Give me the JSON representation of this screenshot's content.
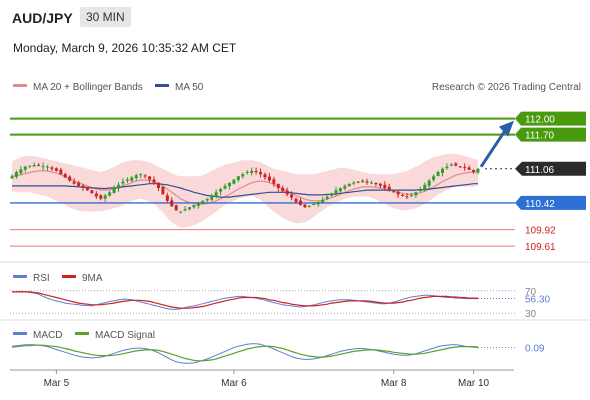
{
  "header": {
    "pair": "AUD/JPY",
    "timeframe": "30 MIN",
    "datetime": "Monday, March 9, 2026 10:35:32 AM CET"
  },
  "legend": {
    "ma20": "MA 20 + Bollinger Bands",
    "ma50": "MA 50",
    "credit": "Research © 2026 Trading Central",
    "rsi": "RSI",
    "rsi_ma": "9MA",
    "macd": "MACD",
    "macd_signal": "MACD Signal"
  },
  "colors": {
    "up": "#2f9e2f",
    "down": "#cc2222",
    "band": "#f8d5d5",
    "ma20": "#e38b8b",
    "ma50": "#334f8f",
    "resistance": "#4a9a10",
    "pivot": "#2e6fd6",
    "support": "#e37a7a",
    "arrow": "#2a5ea8"
  },
  "chart_data": {
    "type": "candlestick",
    "x_ticks": [
      "Mar 5",
      "Mar 6",
      "Mar 8",
      "Mar 10"
    ],
    "ylim": [
      109.35,
      112.35
    ],
    "levels": [
      {
        "value": 112.0,
        "label": "112.00",
        "kind": "resistance"
      },
      {
        "value": 111.7,
        "label": "111.70",
        "kind": "resistance"
      },
      {
        "value": 111.06,
        "label": "111.06",
        "kind": "current"
      },
      {
        "value": 110.42,
        "label": "110.42",
        "kind": "pivot"
      },
      {
        "value": 109.92,
        "label": "109.92",
        "kind": "support"
      },
      {
        "value": 109.61,
        "label": "109.61",
        "kind": "support"
      }
    ],
    "closes": [
      110.92,
      111.0,
      111.05,
      111.1,
      111.12,
      111.13,
      111.12,
      111.11,
      111.1,
      111.06,
      111.02,
      110.96,
      110.9,
      110.84,
      110.78,
      110.74,
      110.7,
      110.66,
      110.6,
      110.54,
      110.5,
      110.56,
      110.62,
      110.7,
      110.76,
      110.82,
      110.86,
      110.9,
      110.94,
      110.96,
      110.92,
      110.86,
      110.8,
      110.7,
      110.58,
      110.46,
      110.36,
      110.28,
      110.26,
      110.3,
      110.34,
      110.38,
      110.42,
      110.46,
      110.5,
      110.56,
      110.62,
      110.68,
      110.74,
      110.8,
      110.86,
      110.92,
      110.96,
      111.0,
      111.02,
      111.0,
      110.96,
      110.9,
      110.84,
      110.78,
      110.7,
      110.64,
      110.58,
      110.52,
      110.44,
      110.38,
      110.34,
      110.36,
      110.4,
      110.44,
      110.48,
      110.54,
      110.6,
      110.66,
      110.7,
      110.74,
      110.78,
      110.8,
      110.82,
      110.84,
      110.82,
      110.8,
      110.78,
      110.74,
      110.7,
      110.66,
      110.62,
      110.58,
      110.56,
      110.54,
      110.56,
      110.62,
      110.68,
      110.76,
      110.84,
      110.92,
      111.0,
      111.06,
      111.1,
      111.14,
      111.12,
      111.1,
      111.08,
      111.04,
      111.0,
      111.06
    ],
    "bands": {
      "upper": [
        111.2,
        111.24,
        111.28,
        111.3,
        111.3,
        111.3,
        111.28,
        111.26,
        111.24,
        111.22,
        111.2,
        111.18,
        111.16,
        111.14,
        111.12,
        111.1,
        111.08,
        111.06,
        111.04,
        111.02,
        111.0,
        111.02,
        111.06,
        111.1,
        111.14,
        111.18,
        111.2,
        111.22,
        111.22,
        111.22,
        111.2,
        111.18,
        111.14,
        111.1,
        111.06,
        111.02,
        110.98,
        110.94,
        110.92,
        110.92,
        110.92,
        110.92,
        110.92,
        110.94,
        110.98,
        111.02,
        111.06,
        111.1,
        111.14,
        111.16,
        111.18,
        111.2,
        111.22,
        111.22,
        111.22,
        111.2,
        111.18,
        111.14,
        111.1,
        111.06,
        111.04,
        111.02,
        111.0,
        110.98,
        110.96,
        110.96,
        110.96,
        110.96,
        110.96,
        110.98,
        111.0,
        111.02,
        111.04,
        111.06,
        111.08,
        111.08,
        111.06,
        111.04,
        111.02,
        111.0,
        110.98,
        110.96,
        110.96,
        110.96,
        110.96,
        110.96,
        110.96,
        110.98,
        111.0,
        111.02,
        111.06,
        111.1,
        111.14,
        111.2,
        111.24,
        111.28,
        111.3,
        111.32,
        111.34,
        111.34,
        111.34,
        111.32,
        111.3,
        111.28,
        111.24,
        111.24
      ],
      "lower": [
        110.64,
        110.62,
        110.62,
        110.62,
        110.62,
        110.6,
        110.58,
        110.56,
        110.54,
        110.5,
        110.46,
        110.42,
        110.38,
        110.34,
        110.3,
        110.28,
        110.26,
        110.26,
        110.26,
        110.26,
        110.26,
        110.28,
        110.3,
        110.32,
        110.34,
        110.38,
        110.42,
        110.46,
        110.48,
        110.5,
        110.48,
        110.44,
        110.4,
        110.32,
        110.24,
        110.14,
        110.06,
        110.0,
        109.96,
        109.96,
        109.98,
        110.0,
        110.04,
        110.08,
        110.14,
        110.2,
        110.26,
        110.32,
        110.38,
        110.42,
        110.46,
        110.5,
        110.52,
        110.54,
        110.56,
        110.52,
        110.48,
        110.4,
        110.32,
        110.26,
        110.2,
        110.14,
        110.1,
        110.06,
        110.04,
        110.04,
        110.06,
        110.1,
        110.16,
        110.22,
        110.28,
        110.34,
        110.38,
        110.42,
        110.46,
        110.5,
        110.52,
        110.54,
        110.54,
        110.54,
        110.54,
        110.52,
        110.48,
        110.44,
        110.4,
        110.36,
        110.32,
        110.3,
        110.28,
        110.28,
        110.3,
        110.32,
        110.36,
        110.4,
        110.46,
        110.52,
        110.58,
        110.62,
        110.66,
        110.7,
        110.72,
        110.72,
        110.72,
        110.72,
        110.72,
        110.74
      ]
    },
    "ma20": [
      110.92,
      110.93,
      110.95,
      110.97,
      110.99,
      111.01,
      111.02,
      111.02,
      111.02,
      111.0,
      110.98,
      110.95,
      110.91,
      110.87,
      110.83,
      110.8,
      110.77,
      110.74,
      110.71,
      110.68,
      110.66,
      110.66,
      110.67,
      110.69,
      110.71,
      110.74,
      110.77,
      110.8,
      110.83,
      110.85,
      110.85,
      110.84,
      110.82,
      110.78,
      110.74,
      110.68,
      110.62,
      110.56,
      110.5,
      110.46,
      110.43,
      110.41,
      110.4,
      110.4,
      110.41,
      110.43,
      110.46,
      110.5,
      110.54,
      110.58,
      110.63,
      110.68,
      110.72,
      110.76,
      110.8,
      110.82,
      110.83,
      110.82,
      110.8,
      110.77,
      110.73,
      110.68,
      110.64,
      110.6,
      110.56,
      110.52,
      110.49,
      110.47,
      110.46,
      110.46,
      110.47,
      110.49,
      110.52,
      110.55,
      110.58,
      110.62,
      110.65,
      110.68,
      110.7,
      110.72,
      110.72,
      110.72,
      110.71,
      110.7,
      110.68,
      110.66,
      110.64,
      110.62,
      110.6,
      110.58,
      110.58,
      110.59,
      110.61,
      110.64,
      110.68,
      110.72,
      110.77,
      110.82,
      110.86,
      110.9,
      110.94,
      110.96,
      110.98,
      110.99,
      111.0,
      111.0
    ],
    "ma50": [
      110.74,
      110.74,
      110.74,
      110.74,
      110.74,
      110.74,
      110.74,
      110.74,
      110.74,
      110.74,
      110.74,
      110.74,
      110.74,
      110.73,
      110.73,
      110.72,
      110.72,
      110.71,
      110.7,
      110.7,
      110.69,
      110.69,
      110.7,
      110.7,
      110.71,
      110.72,
      110.73,
      110.74,
      110.75,
      110.76,
      110.77,
      110.78,
      110.78,
      110.78,
      110.77,
      110.76,
      110.74,
      110.72,
      110.7,
      110.67,
      110.65,
      110.62,
      110.6,
      110.58,
      110.56,
      110.55,
      110.54,
      110.53,
      110.53,
      110.53,
      110.54,
      110.55,
      110.56,
      110.57,
      110.58,
      110.59,
      110.6,
      110.61,
      110.62,
      110.62,
      110.62,
      110.62,
      110.62,
      110.61,
      110.6,
      110.59,
      110.58,
      110.57,
      110.57,
      110.57,
      110.57,
      110.58,
      110.58,
      110.59,
      110.6,
      110.61,
      110.62,
      110.63,
      110.64,
      110.65,
      110.66,
      110.66,
      110.66,
      110.66,
      110.66,
      110.66,
      110.66,
      110.66,
      110.66,
      110.66,
      110.66,
      110.66,
      110.67,
      110.67,
      110.68,
      110.69,
      110.7,
      110.71,
      110.72,
      110.73,
      110.74,
      110.75,
      110.76,
      110.77,
      110.78,
      110.78
    ]
  },
  "rsi": {
    "levels": [
      70,
      30
    ],
    "level_labels": [
      "70",
      "30"
    ],
    "current": 56.3,
    "current_label": "56.30",
    "ylim": [
      25,
      75
    ],
    "values": [
      68,
      68,
      69,
      68,
      67,
      66,
      64,
      60,
      57,
      54,
      52,
      50,
      48,
      47,
      46,
      45,
      44,
      44,
      43,
      45,
      47,
      49,
      51,
      52,
      54,
      55,
      55,
      54,
      52,
      50,
      48,
      46,
      44,
      42,
      40,
      38,
      37,
      37,
      38,
      40,
      42,
      43,
      45,
      47,
      49,
      51,
      53,
      55,
      57,
      58,
      59,
      60,
      60,
      59,
      58,
      57,
      55,
      53,
      51,
      49,
      47,
      45,
      44,
      43,
      42,
      41,
      42,
      43,
      45,
      47,
      49,
      51,
      52,
      53,
      54,
      54,
      54,
      53,
      52,
      51,
      50,
      49,
      48,
      47,
      47,
      48,
      50,
      52,
      55,
      57,
      59,
      60,
      61,
      62,
      62,
      61,
      60,
      59,
      58,
      58,
      57,
      57,
      56,
      56,
      56,
      56
    ],
    "ma": [
      68,
      68,
      68,
      68,
      68,
      67,
      66,
      64,
      62,
      60,
      58,
      56,
      54,
      52,
      50,
      48,
      47,
      46,
      45,
      45,
      45,
      46,
      47,
      48,
      50,
      51,
      52,
      53,
      53,
      53,
      52,
      51,
      49,
      47,
      45,
      43,
      41,
      40,
      39,
      39,
      39,
      40,
      41,
      42,
      44,
      46,
      48,
      50,
      52,
      54,
      55,
      57,
      58,
      58,
      58,
      58,
      57,
      56,
      54,
      53,
      51,
      49,
      48,
      46,
      45,
      44,
      43,
      43,
      43,
      44,
      45,
      46,
      48,
      49,
      50,
      51,
      52,
      52,
      52,
      52,
      52,
      51,
      50,
      49,
      48,
      48,
      48,
      49,
      50,
      52,
      53,
      55,
      57,
      58,
      59,
      60,
      60,
      60,
      60,
      59,
      59,
      58,
      58,
      57,
      57,
      57
    ]
  },
  "macd": {
    "current": 0.09,
    "current_label": "0.09",
    "ylim": [
      -0.32,
      0.25
    ],
    "values": [
      0.12,
      0.13,
      0.14,
      0.15,
      0.15,
      0.15,
      0.14,
      0.13,
      0.11,
      0.08,
      0.05,
      0.02,
      -0.01,
      -0.04,
      -0.07,
      -0.09,
      -0.11,
      -0.12,
      -0.13,
      -0.12,
      -0.11,
      -0.09,
      -0.06,
      -0.03,
      0.0,
      0.03,
      0.05,
      0.07,
      0.08,
      0.08,
      0.07,
      0.05,
      0.02,
      -0.02,
      -0.07,
      -0.12,
      -0.17,
      -0.21,
      -0.23,
      -0.24,
      -0.24,
      -0.23,
      -0.21,
      -0.18,
      -0.15,
      -0.11,
      -0.07,
      -0.03,
      0.01,
      0.05,
      0.09,
      0.12,
      0.14,
      0.16,
      0.17,
      0.17,
      0.16,
      0.13,
      0.1,
      0.06,
      0.02,
      -0.02,
      -0.06,
      -0.1,
      -0.13,
      -0.15,
      -0.16,
      -0.16,
      -0.15,
      -0.13,
      -0.11,
      -0.08,
      -0.05,
      -0.02,
      0.01,
      0.03,
      0.05,
      0.06,
      0.07,
      0.07,
      0.06,
      0.05,
      0.03,
      0.01,
      -0.01,
      -0.03,
      -0.05,
      -0.06,
      -0.07,
      -0.07,
      -0.06,
      -0.04,
      -0.01,
      0.02,
      0.05,
      0.08,
      0.11,
      0.13,
      0.14,
      0.15,
      0.15,
      0.14,
      0.12,
      0.11,
      0.1,
      0.09
    ],
    "signal": [
      0.1,
      0.11,
      0.12,
      0.13,
      0.13,
      0.14,
      0.14,
      0.14,
      0.13,
      0.12,
      0.11,
      0.09,
      0.07,
      0.05,
      0.02,
      0.0,
      -0.02,
      -0.04,
      -0.06,
      -0.07,
      -0.08,
      -0.08,
      -0.08,
      -0.07,
      -0.06,
      -0.04,
      -0.02,
      0.0,
      0.02,
      0.03,
      0.04,
      0.04,
      0.04,
      0.03,
      0.01,
      -0.02,
      -0.05,
      -0.08,
      -0.11,
      -0.14,
      -0.16,
      -0.18,
      -0.19,
      -0.19,
      -0.18,
      -0.17,
      -0.15,
      -0.12,
      -0.09,
      -0.06,
      -0.03,
      0.0,
      0.03,
      0.06,
      0.08,
      0.1,
      0.11,
      0.12,
      0.12,
      0.11,
      0.09,
      0.07,
      0.04,
      0.01,
      -0.02,
      -0.05,
      -0.07,
      -0.09,
      -0.1,
      -0.11,
      -0.11,
      -0.1,
      -0.09,
      -0.07,
      -0.05,
      -0.03,
      -0.01,
      0.01,
      0.02,
      0.03,
      0.04,
      0.04,
      0.04,
      0.03,
      0.02,
      0.01,
      -0.01,
      -0.02,
      -0.03,
      -0.04,
      -0.05,
      -0.05,
      -0.04,
      -0.03,
      -0.01,
      0.01,
      0.03,
      0.05,
      0.07,
      0.09,
      0.1,
      0.11,
      0.11,
      0.11,
      0.11,
      0.1
    ]
  }
}
